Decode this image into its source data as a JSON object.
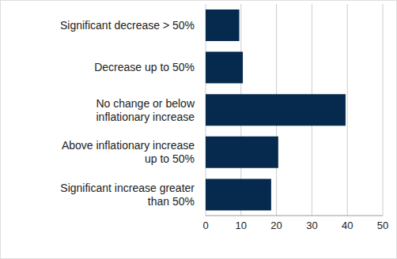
{
  "chart_data": {
    "type": "bar",
    "orientation": "horizontal",
    "categories": [
      "Significant decrease > 50%",
      "Decrease up to 50%",
      "No change or below inflationary increase",
      "Above inflationary increase up to 50%",
      "Significant increase greater than 50%"
    ],
    "values": [
      9.5,
      10.5,
      39.5,
      20.5,
      18.5
    ],
    "color": "#062a4d",
    "xlim": [
      0,
      50
    ],
    "xticks": [
      0,
      10,
      20,
      30,
      40,
      50
    ],
    "grid": true
  }
}
